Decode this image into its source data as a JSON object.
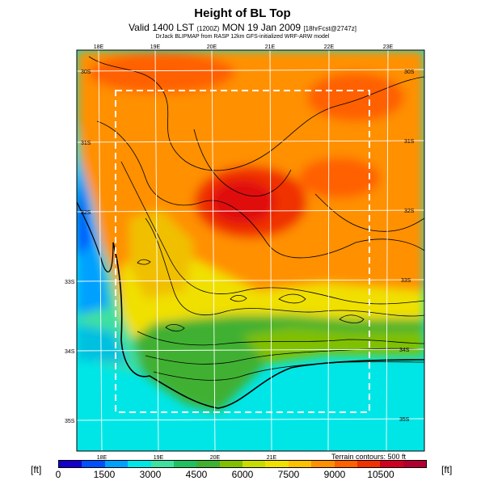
{
  "title": "Height of BL Top",
  "subtitle_main": "Valid 1400 LST",
  "subtitle_utc": "(1200Z)",
  "subtitle_date": "MON 19 Jan 2009",
  "subtitle_fcst": "[18hrFcst@2747z]",
  "credit": "DrJack BLIPMAP from RASP 12km GFS-initialized WRF-ARW model",
  "terrain_note": "Terrain contours: 500 ft",
  "unit_left": "[ft]",
  "unit_right": "[ft]",
  "top_lon_labels": [
    "18E",
    "19E",
    "20E",
    "21E",
    "22E",
    "23E"
  ],
  "bottom_lon_labels": [
    "18E",
    "19E",
    "20E",
    "21E"
  ],
  "left_lat_labels": [
    "30S",
    "31S",
    "32S",
    "33S",
    "34S",
    "35S"
  ],
  "right_lat_labels": [
    "30S",
    "31S",
    "32S",
    "33S",
    "34S",
    "35S"
  ],
  "colorbar_labels": [
    "0",
    "1500",
    "3000",
    "4500",
    "6000",
    "7500",
    "9000",
    "10500"
  ],
  "colorbar_colors": [
    "#1400c8",
    "#0050ff",
    "#00a0ff",
    "#00e6e6",
    "#40e0a0",
    "#20c060",
    "#40b030",
    "#80c000",
    "#c8dc00",
    "#f0e000",
    "#ffc000",
    "#ff9000",
    "#ff6000",
    "#f03000",
    "#d00020",
    "#b00030"
  ]
}
